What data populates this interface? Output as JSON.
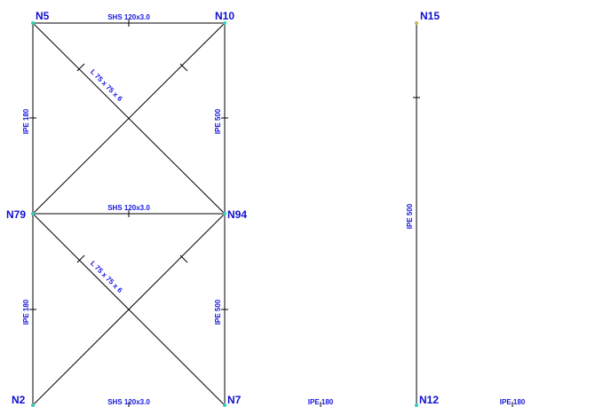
{
  "colors": {
    "member": "#000000",
    "label": "#1515e0",
    "node_label": "#1010d0",
    "node_dot": "#2fd1b8"
  },
  "nodes": {
    "n5": "N5",
    "n10": "N10",
    "n15": "N15",
    "n79": "N79",
    "n94": "N94",
    "n2": "N2",
    "n7": "N7",
    "n12": "N12"
  },
  "sections": {
    "beam_top": "SHS 120x3.0",
    "beam_mid": "SHS 120x3.0",
    "beam_bottom": "SHS 120x3.0",
    "col_left_upper": "IPE 180",
    "col_left_lower": "IPE 180",
    "col_mid_upper": "IPE 500",
    "col_mid_lower": "IPE 500",
    "col_right": "IPE 500",
    "brace_upper": "L 75 x 75 x 6",
    "brace_lower": "L 75 x 75 x 6",
    "ground_mid": "IPE 180",
    "ground_right": "IPE 180"
  }
}
